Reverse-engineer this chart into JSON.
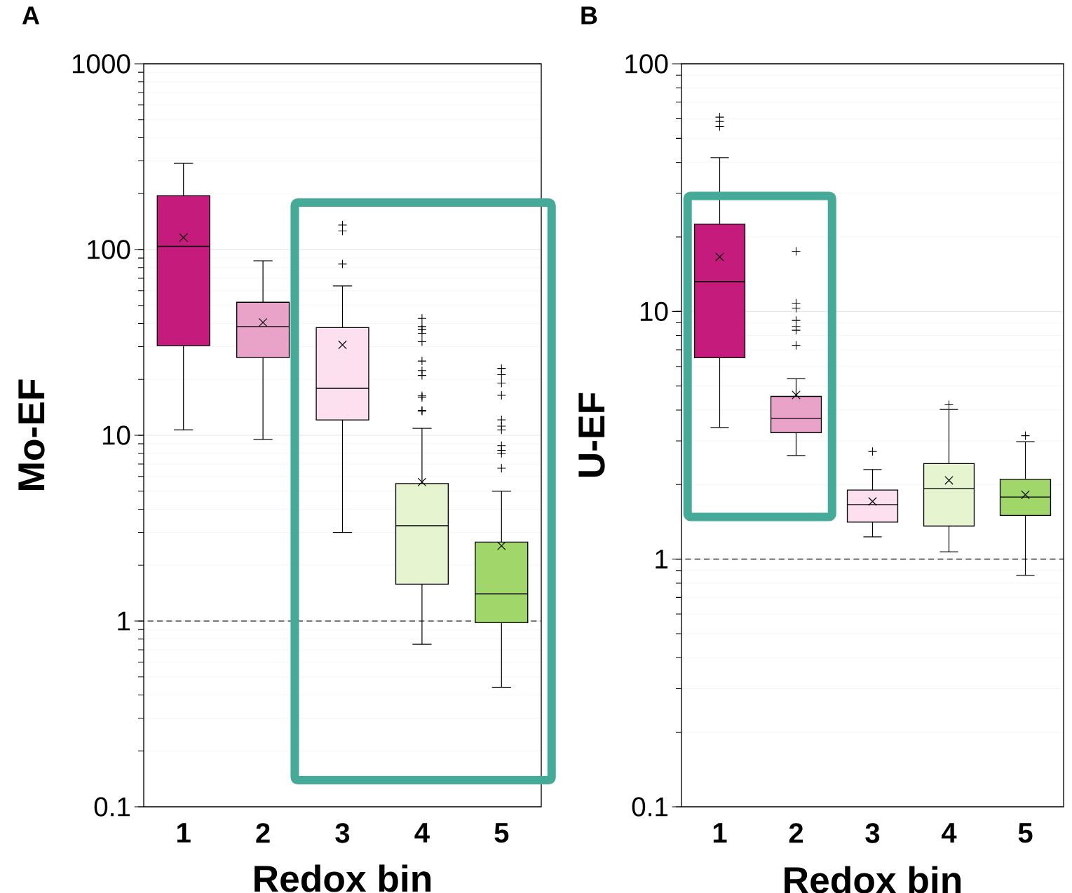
{
  "chart_data": [
    {
      "type": "box",
      "title": "A",
      "xlabel": "Redox bin",
      "ylabel": "Mo-EF",
      "categories": [
        "1",
        "2",
        "3",
        "4",
        "5"
      ],
      "colors": [
        "#c51b7d",
        "#e9a3c9",
        "#fde0ef",
        "#e6f5d0",
        "#a1d76a"
      ],
      "boxes": [
        {
          "low": 10.7,
          "q1": 30.4,
          "median": 104,
          "q3": 195,
          "high": 291,
          "mean": 116
        },
        {
          "low": 9.5,
          "q1": 26.2,
          "median": 38.5,
          "q3": 52,
          "high": 87,
          "mean": 40.5
        },
        {
          "low": 3.0,
          "q1": 12.1,
          "median": 17.9,
          "q3": 38,
          "high": 63.7,
          "mean": 30.7,
          "outliers": [
            83.6,
            126,
            135.6
          ]
        },
        {
          "low": 0.75,
          "q1": 1.58,
          "median": 3.26,
          "q3": 5.5,
          "high": 10.9,
          "mean": 5.6,
          "outliers": [
            13.5,
            13.6,
            16.0,
            16.3,
            21.0,
            22.3,
            25.1,
            31.9,
            35.4,
            37.1,
            38.5,
            42.6
          ]
        },
        {
          "low": 0.44,
          "q1": 0.98,
          "median": 1.4,
          "q3": 2.66,
          "high": 5.0,
          "mean": 2.54,
          "outliers": [
            6.65,
            8.0,
            8.3,
            8.8,
            10.7,
            11.2,
            12.1,
            16.4,
            19.1,
            21.2,
            22.9
          ]
        }
      ],
      "log": true,
      "ylim": [
        0.1,
        1000
      ],
      "yticks": [
        0.1,
        1,
        10,
        100,
        1000
      ],
      "grid": "y",
      "ref_lines": [
        {
          "axis": "y",
          "value": 1,
          "line_style": "dashed"
        }
      ]
    },
    {
      "type": "box",
      "title": "B",
      "xlabel": "Redox bin",
      "ylabel": "U-EF",
      "categories": [
        "1",
        "2",
        "3",
        "4",
        "5"
      ],
      "colors": [
        "#c51b7d",
        "#e9a3c9",
        "#fde0ef",
        "#e6f5d0",
        "#a1d76a"
      ],
      "boxes": [
        {
          "low": 3.4,
          "q1": 6.5,
          "median": 13.2,
          "q3": 22.5,
          "high": 41.8,
          "mean": 16.6,
          "outliers": [
            55.8,
            58.5,
            60.9
          ]
        },
        {
          "low": 2.62,
          "q1": 3.24,
          "median": 3.7,
          "q3": 4.54,
          "high": 5.35,
          "mean": 4.6,
          "outliers": [
            7.3,
            8.4,
            8.7,
            9.2,
            10.3,
            10.8,
            17.5
          ]
        },
        {
          "low": 1.23,
          "q1": 1.41,
          "median": 1.66,
          "q3": 1.9,
          "high": 2.3,
          "mean": 1.71,
          "outliers": [
            2.72
          ]
        },
        {
          "low": 1.07,
          "q1": 1.36,
          "median": 1.93,
          "q3": 2.43,
          "high": 4.02,
          "mean": 2.08,
          "outliers": [
            4.2
          ]
        },
        {
          "low": 0.86,
          "q1": 1.5,
          "median": 1.78,
          "q3": 2.1,
          "high": 2.98,
          "mean": 1.82,
          "outliers": [
            3.15
          ]
        }
      ],
      "log": true,
      "ylim": [
        0.1,
        100
      ],
      "yticks": [
        0.1,
        1,
        10,
        100
      ],
      "grid": "y",
      "ref_lines": [
        {
          "axis": "y",
          "value": 1,
          "line_style": "dashed"
        }
      ]
    }
  ]
}
